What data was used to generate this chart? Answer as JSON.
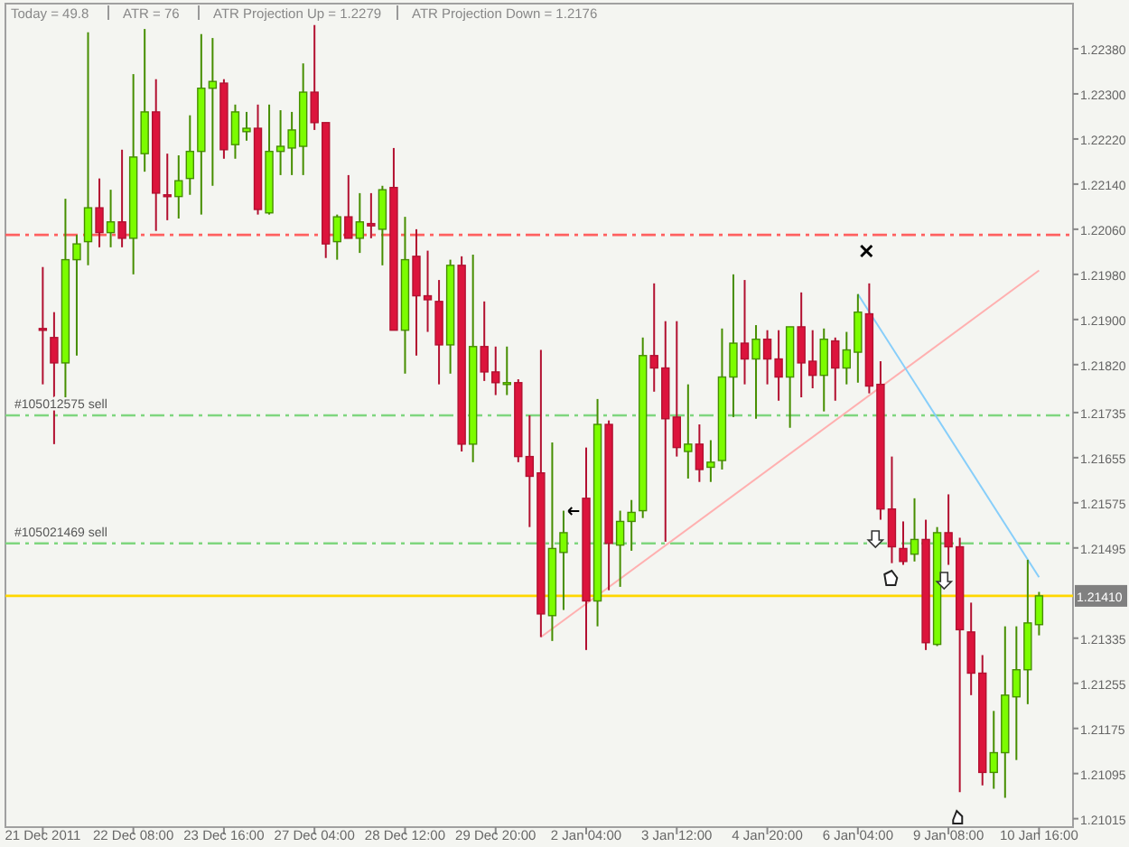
{
  "chart_data": {
    "type": "candlestick",
    "annotations": [
      "Today = 49.8",
      "ATR = 76",
      "ATR Projection Up = 1.2279",
      "ATR Projection Down = 1.2176"
    ],
    "categories": [
      "21 Dec 2011",
      null,
      null,
      null,
      null,
      null,
      null,
      null,
      "22 Dec 08:00",
      null,
      null,
      null,
      null,
      null,
      null,
      null,
      "23 Dec 16:00",
      null,
      null,
      null,
      null,
      null,
      null,
      null,
      "27 Dec 04:00",
      null,
      null,
      null,
      null,
      null,
      null,
      null,
      "28 Dec 12:00",
      null,
      null,
      null,
      null,
      null,
      null,
      null,
      "29 Dec 20:00",
      null,
      null,
      null,
      null,
      null,
      null,
      null,
      "2 Jan 04:00",
      null,
      null,
      null,
      null,
      null,
      null,
      null,
      "3 Jan 12:00",
      null,
      null,
      null,
      null,
      null,
      null,
      null,
      "4 Jan 20:00",
      null,
      null,
      null,
      null,
      null,
      null,
      null,
      "6 Jan 04:00",
      null,
      null,
      null,
      null,
      null,
      null,
      null,
      "9 Jan 08:00",
      null,
      null,
      null,
      null,
      null,
      null,
      null,
      "10 Jan 16:00"
    ],
    "colors": [
      "#dc143c",
      "#dc143c",
      "#7cfc00",
      "#7cfc00",
      "#7cfc00",
      "#dc143c",
      "#7cfc00",
      "#dc143c",
      "#7cfc00",
      "#7cfc00",
      "#dc143c",
      "#dc143c",
      "#7cfc00",
      "#7cfc00",
      "#7cfc00",
      "#7cfc00",
      "#dc143c",
      "#7cfc00",
      "#7cfc00",
      "#dc143c",
      "#7cfc00",
      "#7cfc00",
      "#7cfc00",
      "#7cfc00",
      "#dc143c",
      "#dc143c",
      "#7cfc00",
      "#dc143c",
      "#7cfc00",
      "#dc143c",
      "#7cfc00",
      "#dc143c",
      "#7cfc00",
      "#dc143c",
      "#dc143c",
      "#dc143c",
      "#7cfc00",
      "#dc143c",
      "#7cfc00",
      "#dc143c",
      "#dc143c",
      "#7cfc00",
      "#dc143c",
      "#dc143c",
      "#dc143c",
      "#7cfc00",
      "#7cfc00",
      null,
      "#dc143c",
      "#7cfc00",
      "#dc143c",
      "#7cfc00",
      "#7cfc00",
      "#7cfc00",
      "#dc143c",
      "#dc143c",
      "#dc143c",
      "#7cfc00",
      "#dc143c",
      "#7cfc00",
      "#7cfc00",
      "#7cfc00",
      "#dc143c",
      "#7cfc00",
      "#dc143c",
      "#dc143c",
      "#7cfc00",
      "#dc143c",
      "#dc143c",
      "#7cfc00",
      "#dc143c",
      "#7cfc00",
      "#7cfc00",
      "#dc143c",
      "#dc143c",
      "#dc143c",
      "#dc143c",
      "#7cfc00",
      "#dc143c",
      "#7cfc00",
      "#dc143c",
      "#dc143c",
      "#dc143c",
      "#dc143c",
      "#7cfc00",
      "#7cfc00",
      "#7cfc00",
      "#7cfc00",
      "#7cfc00"
    ],
    "ohlc": [
      [
        1.21884,
        1.21993,
        1.21785,
        1.21881
      ],
      [
        1.21868,
        1.21913,
        1.21679,
        1.21823
      ],
      [
        1.21823,
        1.22114,
        1.21753,
        1.22006
      ],
      [
        1.22006,
        1.2205,
        1.21836,
        1.22034
      ],
      [
        1.22038,
        1.22409,
        1.21996,
        1.22098
      ],
      [
        1.22098,
        1.2215,
        1.22028,
        1.22054
      ],
      [
        1.22054,
        1.2213,
        1.22028,
        1.22073
      ],
      [
        1.22073,
        1.22201,
        1.22028,
        1.22044
      ],
      [
        1.22044,
        1.22335,
        1.2198,
        1.22188
      ],
      [
        1.22194,
        1.22415,
        1.22162,
        1.22268
      ],
      [
        1.22268,
        1.22326,
        1.22057,
        1.22124
      ],
      [
        1.22121,
        1.22194,
        1.22076,
        1.22118
      ],
      [
        1.22118,
        1.22191,
        1.22079,
        1.22146
      ],
      [
        1.2215,
        1.22262,
        1.22121,
        1.22198
      ],
      [
        1.22198,
        1.22406,
        1.22086,
        1.2231
      ],
      [
        1.2231,
        1.22399,
        1.22137,
        1.22322
      ],
      [
        1.22319,
        1.22326,
        1.22185,
        1.22201
      ],
      [
        1.2221,
        1.22281,
        1.22185,
        1.22268
      ],
      [
        1.22233,
        1.22268,
        1.22217,
        1.22239
      ],
      [
        1.22239,
        1.22281,
        1.22086,
        1.22095
      ],
      [
        1.22089,
        1.22281,
        1.22086,
        1.22198
      ],
      [
        1.22198,
        1.22271,
        1.22156,
        1.22207
      ],
      [
        1.22204,
        1.22268,
        1.22156,
        1.22236
      ],
      [
        1.22207,
        1.22354,
        1.22156,
        1.22303
      ],
      [
        1.22303,
        1.22422,
        1.22236,
        1.22249
      ],
      [
        1.22249,
        1.22249,
        1.22009,
        1.22034
      ],
      [
        1.22038,
        1.22086,
        1.22006,
        1.22082
      ],
      [
        1.22082,
        1.22156,
        1.22044,
        1.22044
      ],
      [
        1.22044,
        1.22124,
        1.22018,
        1.22073
      ],
      [
        1.2207,
        1.22124,
        1.22044,
        1.22066
      ],
      [
        1.2206,
        1.22137,
        1.21996,
        1.2213
      ],
      [
        1.22134,
        1.22204,
        1.21881,
        1.21881
      ],
      [
        1.21881,
        1.22082,
        1.21804,
        1.22006
      ],
      [
        1.22012,
        1.2206,
        1.21836,
        1.21942
      ],
      [
        1.21942,
        1.22022,
        1.21878,
        1.21935
      ],
      [
        1.21932,
        1.2197,
        1.21785,
        1.21855
      ],
      [
        1.21855,
        1.22006,
        1.21804,
        1.21996
      ],
      [
        1.21996,
        1.22012,
        1.21666,
        1.21679
      ],
      [
        1.21679,
        1.22015,
        1.21647,
        1.21852
      ],
      [
        1.21852,
        1.21932,
        1.21791,
        1.21807
      ],
      [
        1.21807,
        1.21852,
        1.21766,
        1.21788
      ],
      [
        1.21785,
        1.21852,
        1.21766,
        1.21788
      ],
      [
        1.21788,
        1.21794,
        1.21647,
        1.21657
      ],
      [
        1.21657,
        1.2173,
        1.21532,
        1.21622
      ],
      [
        1.21628,
        1.21846,
        1.21337,
        1.21378
      ],
      [
        1.21375,
        1.21682,
        1.2133,
        1.21494
      ],
      [
        1.21487,
        1.21561,
        1.21385,
        1.21522
      ],
      null,
      [
        1.21583,
        1.21673,
        1.21314,
        1.21401
      ],
      [
        1.21401,
        1.21759,
        1.21356,
        1.21714
      ],
      [
        1.21714,
        1.21721,
        1.2142,
        1.21503
      ],
      [
        1.215,
        1.21561,
        1.21426,
        1.21542
      ],
      [
        1.21542,
        1.2158,
        1.2149,
        1.21558
      ],
      [
        1.21561,
        1.21868,
        1.21548,
        1.21836
      ],
      [
        1.21836,
        1.21964,
        1.21772,
        1.21814
      ],
      [
        1.21814,
        1.21897,
        1.21506,
        1.21724
      ],
      [
        1.21727,
        1.21897,
        1.21657,
        1.21673
      ],
      [
        1.21666,
        1.21785,
        1.21618,
        1.21679
      ],
      [
        1.21679,
        1.21714,
        1.21612,
        1.21634
      ],
      [
        1.21638,
        1.21686,
        1.21612,
        1.21647
      ],
      [
        1.2165,
        1.21884,
        1.21634,
        1.21798
      ],
      [
        1.21798,
        1.2198,
        1.21727,
        1.21858
      ],
      [
        1.21858,
        1.2197,
        1.21785,
        1.2183
      ],
      [
        1.2183,
        1.2189,
        1.21724,
        1.21865
      ],
      [
        1.21865,
        1.21881,
        1.21785,
        1.2183
      ],
      [
        1.2183,
        1.21881,
        1.21756,
        1.21798
      ],
      [
        1.21798,
        1.21887,
        1.21708,
        1.21887
      ],
      [
        1.21887,
        1.21948,
        1.21762,
        1.21823
      ],
      [
        1.21826,
        1.21881,
        1.21778,
        1.21801
      ],
      [
        1.21801,
        1.21884,
        1.21737,
        1.21865
      ],
      [
        1.21862,
        1.21868,
        1.21756,
        1.21814
      ],
      [
        1.21814,
        1.21878,
        1.21785,
        1.21846
      ],
      [
        1.21842,
        1.21945,
        1.21788,
        1.21913
      ],
      [
        1.2191,
        1.21964,
        1.21769,
        1.21782
      ],
      [
        1.21785,
        1.21826,
        1.21545,
        1.21564
      ],
      [
        1.21564,
        1.21657,
        1.21468,
        1.21497
      ],
      [
        1.21494,
        1.21542,
        1.21465,
        1.21471
      ],
      [
        1.21484,
        1.21583,
        1.21471,
        1.2151
      ],
      [
        1.2151,
        1.21545,
        1.21314,
        1.21327
      ],
      [
        1.21324,
        1.21532,
        1.21321,
        1.21522
      ],
      [
        1.21522,
        1.2159,
        1.21465,
        1.21497
      ],
      [
        1.21497,
        1.21513,
        1.21062,
        1.2135
      ],
      [
        1.21346,
        1.21398,
        1.21234,
        1.21273
      ],
      [
        1.21273,
        1.21305,
        1.21074,
        1.21097
      ],
      [
        1.21097,
        1.21206,
        1.21068,
        1.21132
      ],
      [
        1.21132,
        1.21356,
        1.21052,
        1.21234
      ],
      [
        1.21231,
        1.21356,
        1.21119,
        1.21279
      ],
      [
        1.21279,
        1.21474,
        1.21218,
        1.21362
      ],
      [
        1.21359,
        1.21417,
        1.2134,
        1.2141
      ]
    ],
    "series": [
      {
        "type": "line",
        "color": "#ffb0b0",
        "values": [
          null,
          null,
          null,
          null,
          null,
          null,
          null,
          null,
          null,
          null,
          null,
          null,
          null,
          null,
          null,
          null,
          null,
          null,
          null,
          null,
          null,
          null,
          null,
          null,
          null,
          null,
          null,
          null,
          null,
          null,
          null,
          null,
          null,
          null,
          null,
          null,
          null,
          null,
          null,
          null,
          null,
          null,
          null,
          null,
          1.21337,
          null,
          null,
          null,
          null,
          null,
          null,
          null,
          null,
          null,
          null,
          null,
          null,
          null,
          null,
          null,
          null,
          null,
          null,
          null,
          null,
          null,
          null,
          null,
          null,
          null,
          null,
          null,
          null,
          null,
          null,
          null,
          null,
          null,
          null,
          null,
          null,
          null,
          null,
          null,
          null,
          null,
          null,
          null,
          1.21987
        ]
      },
      {
        "type": "line",
        "color": "#87cefa",
        "values": [
          null,
          null,
          null,
          null,
          null,
          null,
          null,
          null,
          null,
          null,
          null,
          null,
          null,
          null,
          null,
          null,
          null,
          null,
          null,
          null,
          null,
          null,
          null,
          null,
          null,
          null,
          null,
          null,
          null,
          null,
          null,
          null,
          null,
          null,
          null,
          null,
          null,
          null,
          null,
          null,
          null,
          null,
          null,
          null,
          null,
          null,
          null,
          null,
          null,
          null,
          null,
          null,
          null,
          null,
          null,
          null,
          null,
          null,
          null,
          null,
          null,
          null,
          null,
          null,
          null,
          null,
          null,
          null,
          null,
          null,
          null,
          null,
          1.21945,
          null,
          null,
          null,
          null,
          null,
          null,
          null,
          null,
          null,
          null,
          null,
          null,
          null,
          null,
          null,
          1.21443
        ]
      }
    ],
    "ref_lines": [
      {
        "axis": "y",
        "value": 1.2205,
        "color": "#ff6060",
        "line_style": "dashed"
      },
      {
        "axis": "y",
        "value": 1.2173,
        "label": "#105012575 sell",
        "color": "#7fd67f",
        "line_style": "dashed"
      },
      {
        "axis": "y",
        "value": 1.21503,
        "label": "#105021469 sell",
        "color": "#7fd67f",
        "line_style": "dashed"
      },
      {
        "axis": "y",
        "value": 1.2141,
        "label": "1.21410",
        "color": "#ffd700",
        "line_style": "solid"
      }
    ],
    "ylim": [
      1.21,
      1.2246
    ],
    "yticks": [
      {
        "value": 1.2238,
        "label": "1.22380"
      },
      {
        "value": 1.223,
        "label": "1.22300"
      },
      {
        "value": 1.2222,
        "label": "1.22220"
      },
      {
        "value": 1.2214,
        "label": "1.22140"
      },
      {
        "value": 1.2206,
        "label": "1.22060"
      },
      {
        "value": 1.2198,
        "label": "1.21980"
      },
      {
        "value": 1.219,
        "label": "1.21900"
      },
      {
        "value": 1.2182,
        "label": "1.21820"
      },
      1.21735,
      1.21655,
      1.21575,
      1.21495,
      1.21335,
      1.21255,
      1.21175,
      1.21095,
      1.21015
    ]
  }
}
